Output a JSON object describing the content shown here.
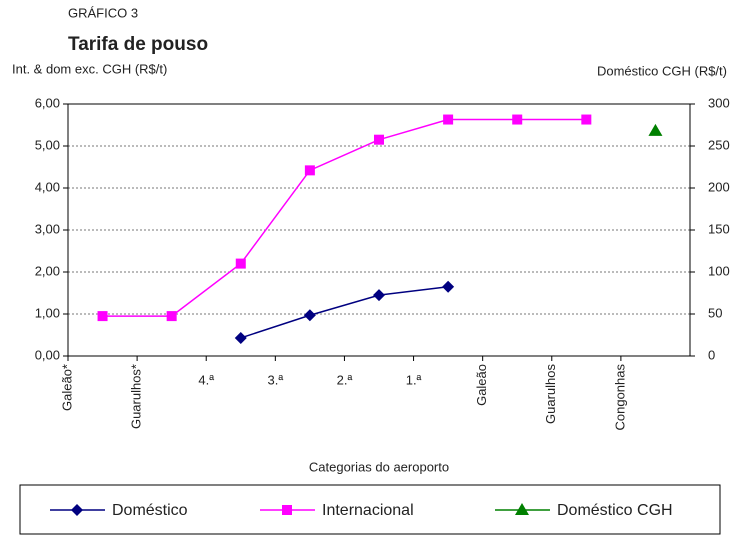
{
  "chart_data": {
    "type": "line",
    "supertitle": "GRÁFICO 3",
    "title": "Tarifa de pouso",
    "y_label": "Int. & dom exc. CGH (R$/t)",
    "y2_label": "Doméstico CGH (R$/t)",
    "x_label": "Categorias do aeroporto",
    "categories": [
      "Galeão*",
      "Guarulhos*",
      "4.ª",
      "3.ª",
      "2.ª",
      "1.ª",
      "Galeão",
      "Guarulhos",
      "Congonhas"
    ],
    "ylim": [
      0,
      6
    ],
    "yticks": [
      {
        "value": 0,
        "label": "0,00"
      },
      {
        "value": 1,
        "label": "1,00"
      },
      {
        "value": 2,
        "label": "2,00"
      },
      {
        "value": 3,
        "label": "3,00"
      },
      {
        "value": 4,
        "label": "4,00"
      },
      {
        "value": 5,
        "label": "5,00"
      },
      {
        "value": 6,
        "label": "6,00"
      }
    ],
    "y2lim": [
      0,
      300
    ],
    "y2ticks": [
      0,
      50,
      100,
      150,
      200,
      250,
      300
    ],
    "grid": true,
    "series": [
      {
        "name": "Doméstico",
        "color": "#000080",
        "marker": "diamond",
        "values": [
          null,
          null,
          0.43,
          0.97,
          1.45,
          1.65,
          null,
          null,
          null
        ]
      },
      {
        "name": "Internacional",
        "color": "#ff00ff",
        "marker": "square",
        "values": [
          0.95,
          0.95,
          2.2,
          4.42,
          5.15,
          5.63,
          5.63,
          5.63,
          null
        ]
      },
      {
        "name": "Doméstico CGH",
        "color": "#008000",
        "marker": "triangle",
        "axis": "y2",
        "values": [
          null,
          null,
          null,
          null,
          null,
          null,
          null,
          null,
          268
        ]
      }
    ]
  }
}
